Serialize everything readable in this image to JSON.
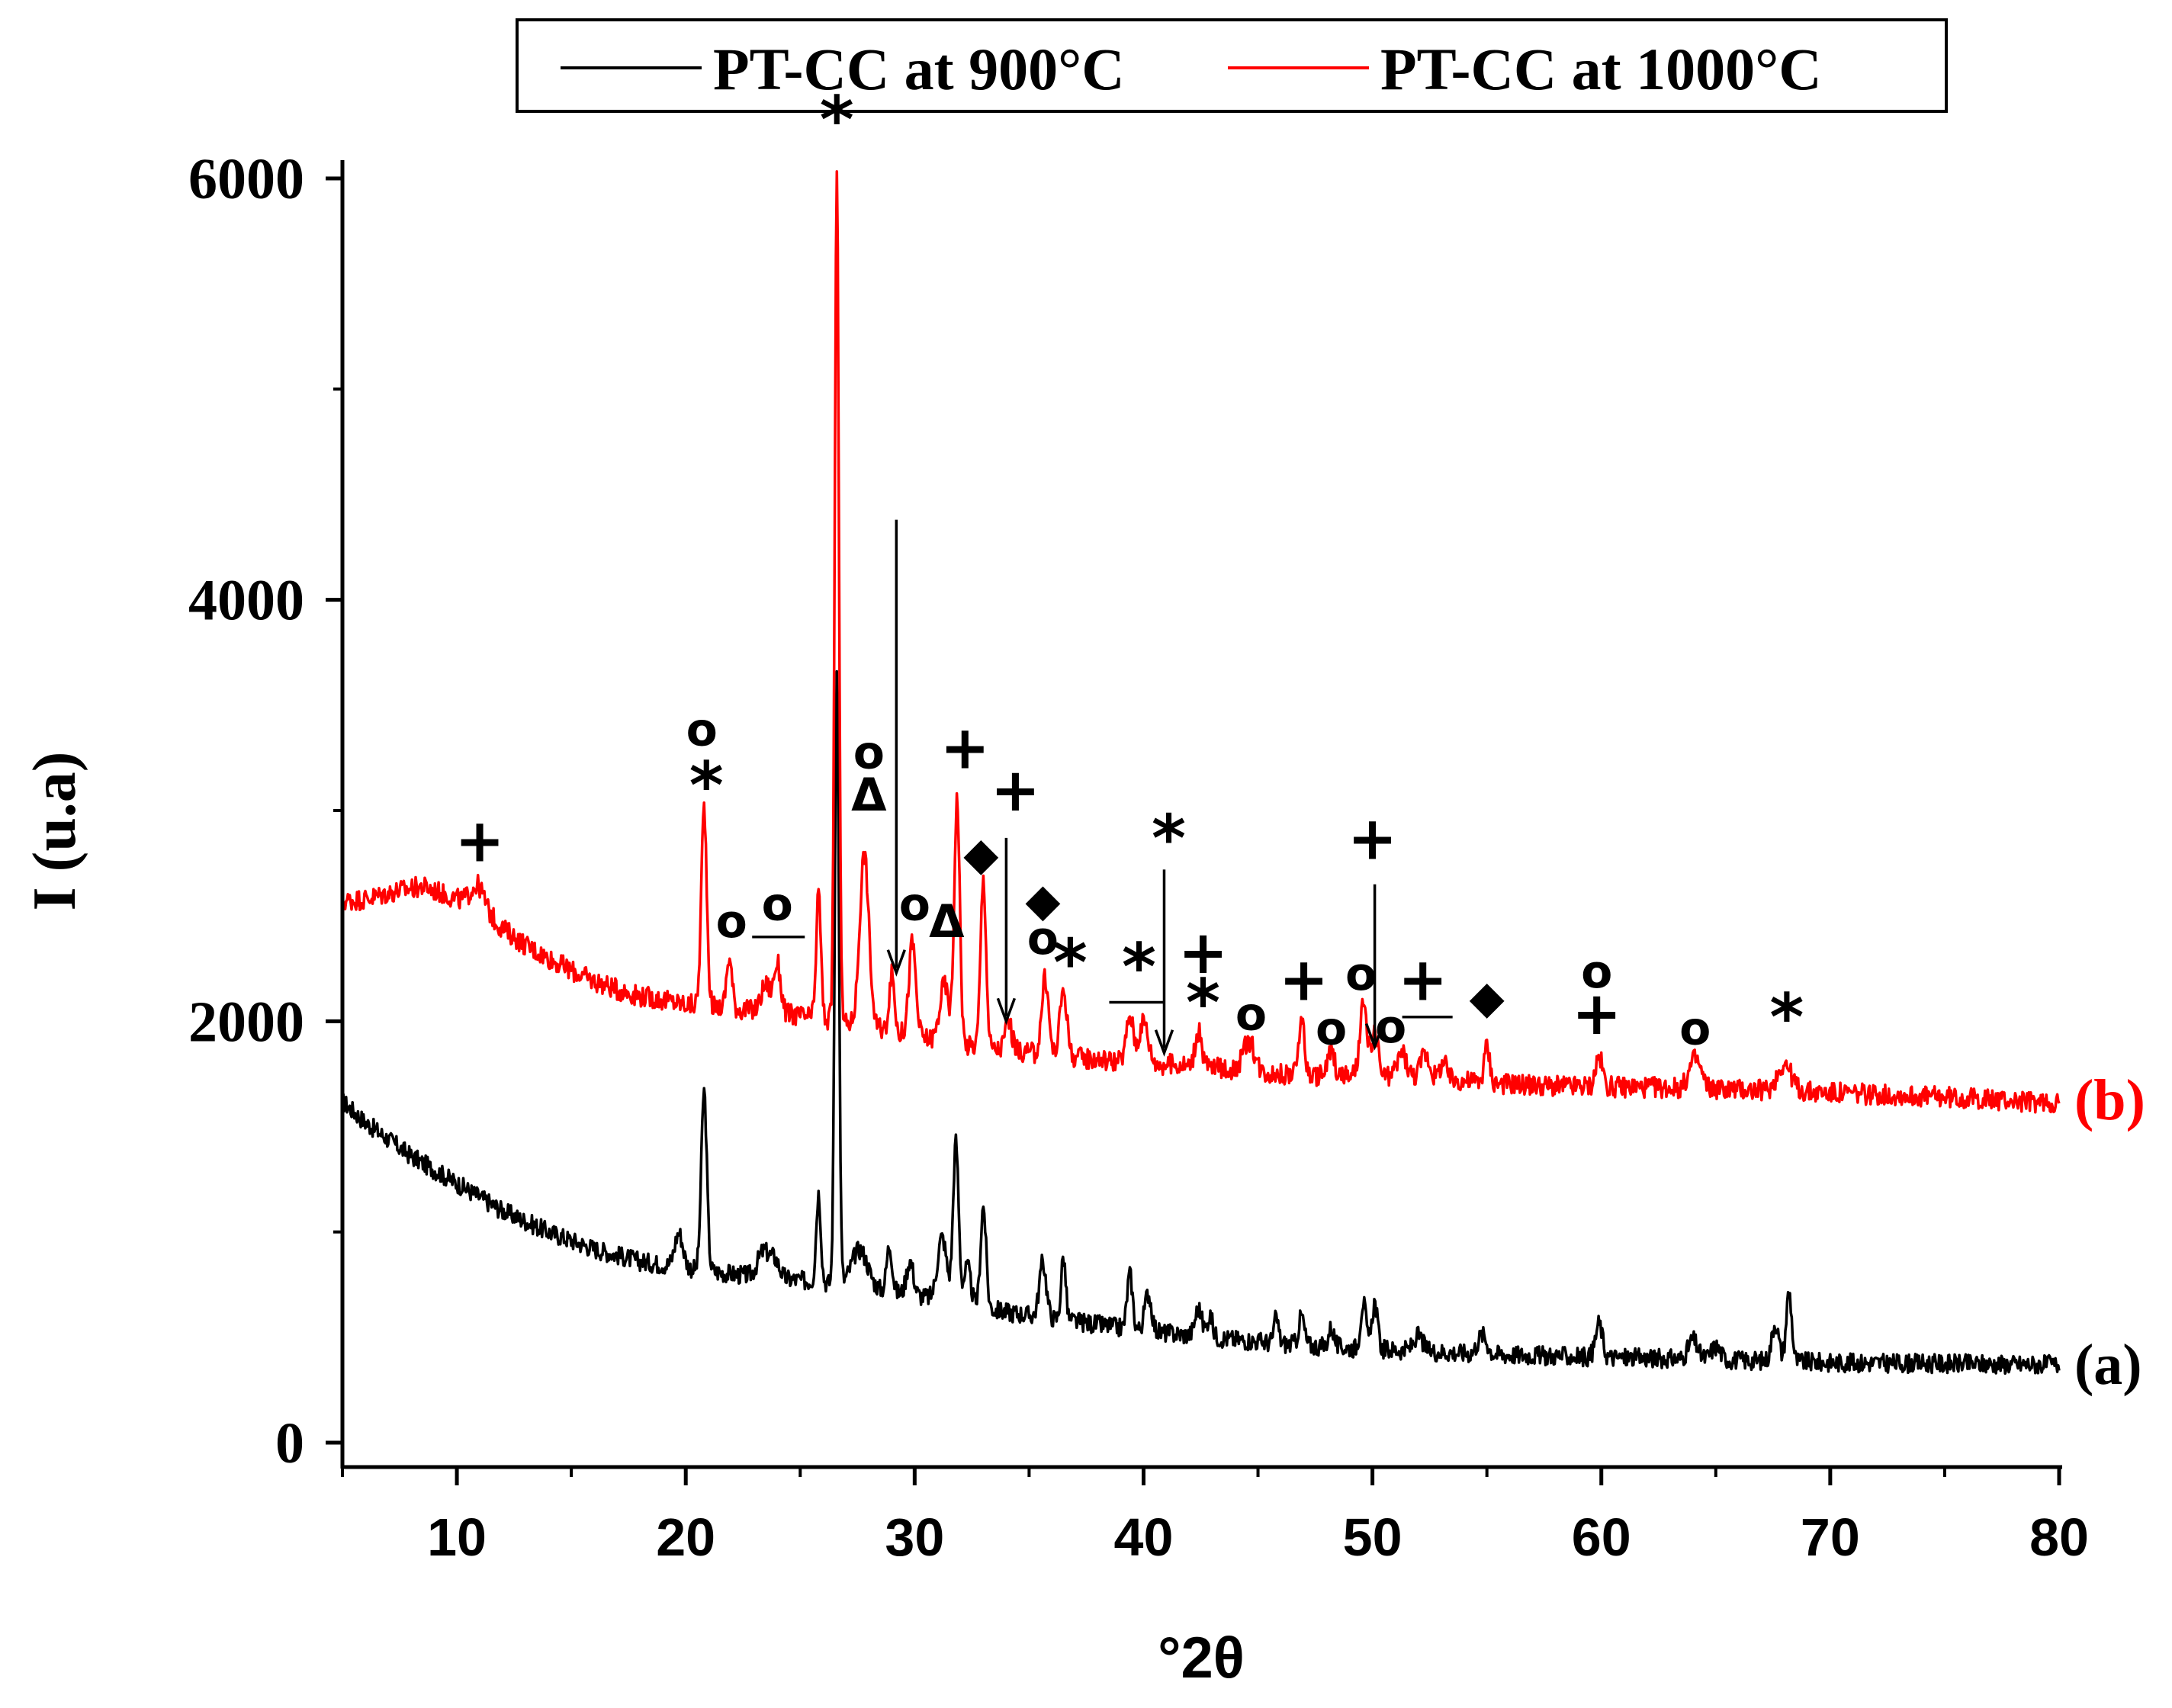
{
  "chart_data": {
    "type": "line",
    "xlabel": "°2θ",
    "ylabel": "I (u.a)",
    "xlim": [
      5,
      80
    ],
    "ylim": [
      -100,
      6300
    ],
    "xticks": [
      "10",
      "20",
      "30",
      "40",
      "50",
      "60",
      "70",
      "80"
    ],
    "xtick_values": [
      10,
      20,
      30,
      40,
      50,
      60,
      70,
      80
    ],
    "yticks": [
      "0",
      "2000",
      "4000",
      "6000"
    ],
    "ytick_values": [
      0,
      2000,
      4000,
      6000
    ],
    "legend": {
      "position": "top",
      "entries": [
        {
          "label": "PT-CC at 900°C",
          "color": "#000000"
        },
        {
          "label": "PT-CC at 1000°C",
          "color": "#ff0000"
        }
      ]
    },
    "series": [
      {
        "name": "PT-CC at 900°C",
        "tag": "(a)",
        "color": "#000000",
        "baseline": [
          [
            5,
            1620
          ],
          [
            6,
            1520
          ],
          [
            8,
            1360
          ],
          [
            10,
            1230
          ],
          [
            12,
            1100
          ],
          [
            14,
            1000
          ],
          [
            16,
            920
          ],
          [
            18,
            860
          ],
          [
            20,
            830
          ],
          [
            22,
            800
          ],
          [
            24,
            780
          ],
          [
            26,
            760
          ],
          [
            28,
            730
          ],
          [
            30,
            700
          ],
          [
            32,
            660
          ],
          [
            34,
            620
          ],
          [
            36,
            590
          ],
          [
            38,
            560
          ],
          [
            40,
            530
          ],
          [
            42,
            510
          ],
          [
            44,
            490
          ],
          [
            46,
            470
          ],
          [
            48,
            455
          ],
          [
            50,
            445
          ],
          [
            55,
            420
          ],
          [
            60,
            405
          ],
          [
            65,
            395
          ],
          [
            70,
            380
          ],
          [
            75,
            375
          ],
          [
            80,
            370
          ]
        ],
        "peaks": [
          [
            19.7,
            160,
            0.18
          ],
          [
            20.8,
            850,
            0.12
          ],
          [
            23.4,
            120,
            0.25
          ],
          [
            23.9,
            80,
            0.2
          ],
          [
            25.8,
            420,
            0.1
          ],
          [
            26.6,
            2950,
            0.09
          ],
          [
            27.6,
            180,
            0.35
          ],
          [
            28.9,
            220,
            0.12
          ],
          [
            29.8,
            160,
            0.15
          ],
          [
            31.2,
            300,
            0.2
          ],
          [
            31.8,
            760,
            0.12
          ],
          [
            32.3,
            180,
            0.15
          ],
          [
            33.0,
            480,
            0.12
          ],
          [
            35.6,
            260,
            0.15
          ],
          [
            36.5,
            300,
            0.1
          ],
          [
            39.4,
            260,
            0.12
          ],
          [
            40.2,
            180,
            0.15
          ],
          [
            42.4,
            130,
            0.15
          ],
          [
            42.9,
            100,
            0.12
          ],
          [
            45.8,
            120,
            0.1
          ],
          [
            46.9,
            140,
            0.12
          ],
          [
            48.2,
            90,
            0.12
          ],
          [
            49.6,
            220,
            0.12
          ],
          [
            50.1,
            220,
            0.12
          ],
          [
            52.0,
            70,
            0.2
          ],
          [
            54.8,
            90,
            0.2
          ],
          [
            59.9,
            160,
            0.15
          ],
          [
            64.0,
            90,
            0.2
          ],
          [
            65.0,
            60,
            0.2
          ],
          [
            67.6,
            180,
            0.15
          ],
          [
            68.2,
            330,
            0.12
          ]
        ],
        "noise": 45
      },
      {
        "name": "PT-CC at 1000°C",
        "tag": "(b)",
        "color": "#ff0000",
        "baseline": [
          [
            5,
            2570
          ],
          [
            6,
            2580
          ],
          [
            7.5,
            2620
          ],
          [
            8.5,
            2640
          ],
          [
            10,
            2580
          ],
          [
            11,
            2540
          ],
          [
            12,
            2440
          ],
          [
            13,
            2360
          ],
          [
            14,
            2300
          ],
          [
            15,
            2240
          ],
          [
            16,
            2190
          ],
          [
            17,
            2150
          ],
          [
            18,
            2120
          ],
          [
            19,
            2100
          ],
          [
            20,
            2080
          ],
          [
            22,
            2060
          ],
          [
            24,
            2040
          ],
          [
            26,
            2010
          ],
          [
            28,
            1970
          ],
          [
            30,
            1930
          ],
          [
            32,
            1890
          ],
          [
            34,
            1860
          ],
          [
            36,
            1840
          ],
          [
            38,
            1820
          ],
          [
            40,
            1800
          ],
          [
            42,
            1790
          ],
          [
            44,
            1770
          ],
          [
            46,
            1750
          ],
          [
            48,
            1740
          ],
          [
            50,
            1740
          ],
          [
            52,
            1730
          ],
          [
            55,
            1710
          ],
          [
            58,
            1690
          ],
          [
            60,
            1690
          ],
          [
            65,
            1680
          ],
          [
            70,
            1660
          ],
          [
            75,
            1640
          ],
          [
            80,
            1610
          ]
        ],
        "peaks": [
          [
            10.9,
            100,
            0.3
          ],
          [
            20.8,
            940,
            0.12
          ],
          [
            21.9,
            240,
            0.12
          ],
          [
            23.5,
            130,
            0.2
          ],
          [
            24.0,
            230,
            0.15
          ],
          [
            25.8,
            600,
            0.1
          ],
          [
            26.6,
            4000,
            0.09
          ],
          [
            27.8,
            820,
            0.2
          ],
          [
            29.0,
            270,
            0.12
          ],
          [
            29.9,
            440,
            0.15
          ],
          [
            31.3,
            270,
            0.2
          ],
          [
            31.85,
            1160,
            0.12
          ],
          [
            33.0,
            800,
            0.12
          ],
          [
            34.1,
            140,
            0.15
          ],
          [
            35.7,
            360,
            0.15
          ],
          [
            36.5,
            320,
            0.15
          ],
          [
            39.4,
            220,
            0.15
          ],
          [
            40.0,
            200,
            0.2
          ],
          [
            42.4,
            160,
            0.15
          ],
          [
            44.6,
            140,
            0.25
          ],
          [
            46.9,
            280,
            0.12
          ],
          [
            48.2,
            120,
            0.15
          ],
          [
            49.6,
            330,
            0.15
          ],
          [
            50.1,
            200,
            0.15
          ],
          [
            51.3,
            120,
            0.2
          ],
          [
            52.3,
            120,
            0.2
          ],
          [
            53.1,
            80,
            0.15
          ],
          [
            55.0,
            170,
            0.12
          ],
          [
            59.9,
            140,
            0.15
          ],
          [
            64.1,
            140,
            0.25
          ],
          [
            68.0,
            130,
            0.3
          ]
        ],
        "noise": 50
      }
    ],
    "annotations": {
      "markers": [
        {
          "symbol": "*",
          "x": 26.6,
          "y": 6170,
          "size": 86
        },
        {
          "symbol": "o",
          "x": 20.7,
          "y": 3310,
          "size": 60
        },
        {
          "symbol": "*",
          "x": 20.9,
          "y": 3010,
          "size": 86
        },
        {
          "symbol": "o",
          "x": 22.0,
          "y": 2400,
          "size": 60
        },
        {
          "symbol": "o",
          "x": 24.0,
          "y": 2480,
          "size": 60
        },
        {
          "symbol": "o",
          "x": 28.0,
          "y": 3200,
          "size": 60
        },
        {
          "symbol": "Δ",
          "x": 28.0,
          "y": 3000,
          "size": 60
        },
        {
          "symbol": "o",
          "x": 30.0,
          "y": 2480,
          "size": 60
        },
        {
          "symbol": "Δ",
          "x": 31.4,
          "y": 2400,
          "size": 60
        },
        {
          "symbol": "+",
          "x": 32.2,
          "y": 3200,
          "size": 78
        },
        {
          "symbol": "◆",
          "x": 32.9,
          "y": 2720,
          "size": 60
        },
        {
          "symbol": "+",
          "x": 34.4,
          "y": 3000,
          "size": 78
        },
        {
          "symbol": "◆",
          "x": 35.6,
          "y": 2500,
          "size": 60
        },
        {
          "symbol": "o",
          "x": 35.6,
          "y": 2320,
          "size": 60
        },
        {
          "symbol": "*",
          "x": 36.8,
          "y": 2170,
          "size": 86
        },
        {
          "symbol": "*",
          "x": 39.8,
          "y": 2150,
          "size": 86
        },
        {
          "symbol": "*",
          "x": 41.1,
          "y": 2760,
          "size": 86
        },
        {
          "symbol": "+",
          "x": 42.6,
          "y": 2230,
          "size": 78
        },
        {
          "symbol": "*",
          "x": 42.6,
          "y": 1980,
          "size": 86
        },
        {
          "symbol": "o",
          "x": 44.7,
          "y": 1960,
          "size": 60
        },
        {
          "symbol": "+",
          "x": 47.0,
          "y": 2100,
          "size": 78
        },
        {
          "symbol": "o",
          "x": 48.2,
          "y": 1890,
          "size": 60
        },
        {
          "symbol": "o",
          "x": 49.5,
          "y": 2150,
          "size": 60
        },
        {
          "symbol": "+",
          "x": 50.0,
          "y": 2770,
          "size": 78
        },
        {
          "symbol": "o",
          "x": 50.8,
          "y": 1900,
          "size": 60
        },
        {
          "symbol": "+",
          "x": 52.2,
          "y": 2100,
          "size": 78
        },
        {
          "symbol": "◆",
          "x": 55.0,
          "y": 2040,
          "size": 60
        },
        {
          "symbol": "o",
          "x": 59.8,
          "y": 2160,
          "size": 60
        },
        {
          "symbol": "+",
          "x": 59.8,
          "y": 1940,
          "size": 78
        },
        {
          "symbol": "o",
          "x": 64.1,
          "y": 1890,
          "size": 60
        },
        {
          "symbol": "*",
          "x": 68.1,
          "y": 1910,
          "size": 86
        },
        {
          "symbol": "+",
          "x": 11.0,
          "y": 2760,
          "size": 78
        }
      ],
      "overbars": [
        {
          "x1": 22.9,
          "x2": 25.2,
          "y": 2400
        },
        {
          "x1": 38.5,
          "x2": 40.9,
          "y": 2090
        },
        {
          "x1": 51.3,
          "x2": 53.5,
          "y": 2020
        }
      ],
      "arrows": [
        {
          "x": 29.2,
          "y1": 4380,
          "y2": 2230
        },
        {
          "x": 34.0,
          "y1": 2870,
          "y2": 2000
        },
        {
          "x": 40.9,
          "y1": 2720,
          "y2": 1850
        },
        {
          "x": 50.1,
          "y1": 2650,
          "y2": 1880
        }
      ]
    }
  }
}
